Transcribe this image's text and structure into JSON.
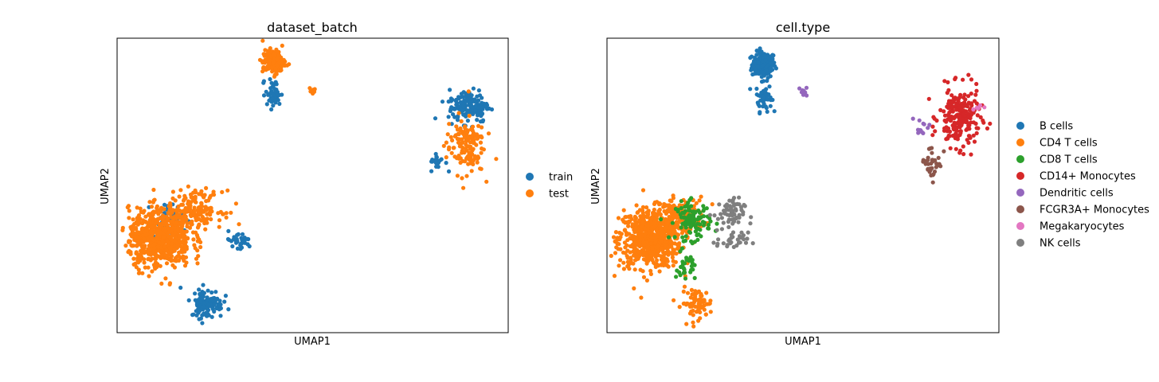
{
  "chart_data": [
    {
      "type": "scatter",
      "title": "dataset_batch",
      "xlabel": "UMAP1",
      "ylabel": "UMAP2",
      "xticks": false,
      "yticks": false,
      "grid": false,
      "legend_position": "right",
      "xlim": [
        0,
        100
      ],
      "ylim": [
        0,
        100
      ],
      "series": [
        {
          "name": "train",
          "color": "#1f77b4",
          "points": []
        },
        {
          "name": "test",
          "color": "#ff7f0e",
          "points": []
        }
      ]
    },
    {
      "type": "scatter",
      "title": "cell.type",
      "xlabel": "UMAP1",
      "ylabel": "UMAP2",
      "xticks": false,
      "yticks": false,
      "grid": false,
      "legend_position": "right",
      "xlim": [
        0,
        100
      ],
      "ylim": [
        0,
        100
      ],
      "series": [
        {
          "name": "B cells",
          "color": "#1f77b4",
          "points": []
        },
        {
          "name": "CD4 T cells",
          "color": "#ff7f0e",
          "points": []
        },
        {
          "name": "CD8 T cells",
          "color": "#2ca02c",
          "points": []
        },
        {
          "name": "CD14+ Monocytes",
          "color": "#d62728",
          "points": []
        },
        {
          "name": "Dendritic cells",
          "color": "#9467bd",
          "points": []
        },
        {
          "name": "FCGR3A+ Monocytes",
          "color": "#8c564b",
          "points": []
        },
        {
          "name": "Megakaryocytes",
          "color": "#e377c2",
          "points": []
        },
        {
          "name": "NK cells",
          "color": "#7f7f7f",
          "points": []
        }
      ]
    }
  ]
}
